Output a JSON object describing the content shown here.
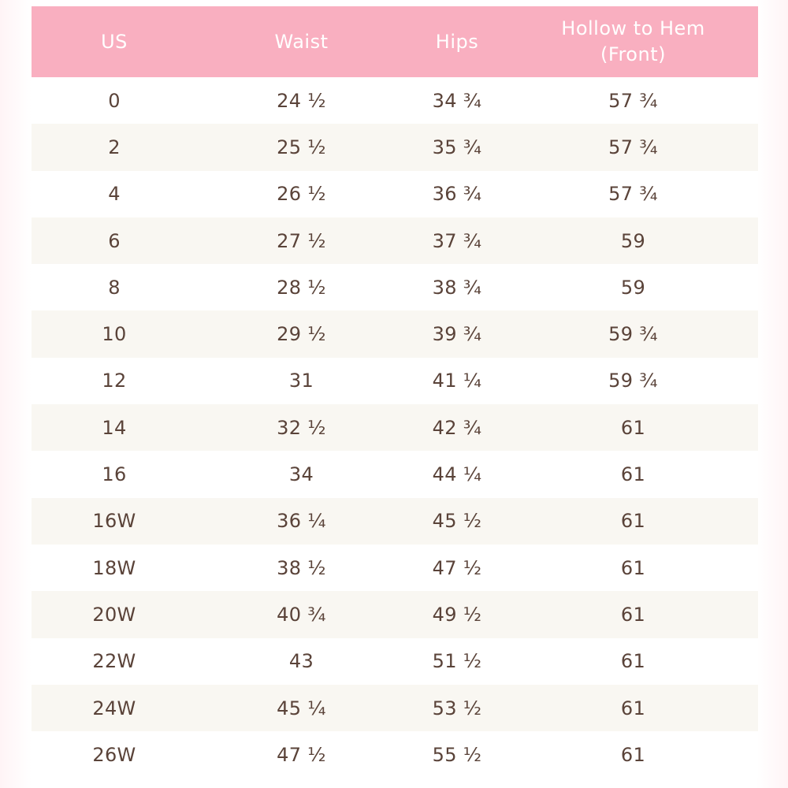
{
  "table": {
    "headers": [
      "US",
      "Waist",
      "Hips",
      "Hollow to Hem (Front)"
    ],
    "rows": [
      [
        "0",
        "24 ½",
        "34 ¾",
        "57 ¾"
      ],
      [
        "2",
        "25 ½",
        "35 ¾",
        "57 ¾"
      ],
      [
        "4",
        "26 ½",
        "36 ¾",
        "57 ¾"
      ],
      [
        "6",
        "27 ½",
        "37 ¾",
        "59"
      ],
      [
        "8",
        "28 ½",
        "38 ¾",
        "59"
      ],
      [
        "10",
        "29 ½",
        "39 ¾",
        "59 ¾"
      ],
      [
        "12",
        "31",
        "41 ¼",
        "59 ¾"
      ],
      [
        "14",
        "32 ½",
        "42 ¾",
        "61"
      ],
      [
        "16",
        "34",
        "44 ¼",
        "61"
      ],
      [
        "16W",
        "36 ¼",
        "45 ½",
        "61"
      ],
      [
        "18W",
        "38 ½",
        "47 ½",
        "61"
      ],
      [
        "20W",
        "40 ¾",
        "49 ½",
        "61"
      ],
      [
        "22W",
        "43",
        "51 ½",
        "61"
      ],
      [
        "24W",
        "45 ¼",
        "53 ½",
        "61"
      ],
      [
        "26W",
        "47 ½",
        "55 ½",
        "61"
      ]
    ]
  },
  "colors": {
    "header_background": "#f9afc0",
    "header_text": "#ffffff",
    "row_alt_background": "#f9f7f2",
    "body_text": "#5a4339"
  }
}
